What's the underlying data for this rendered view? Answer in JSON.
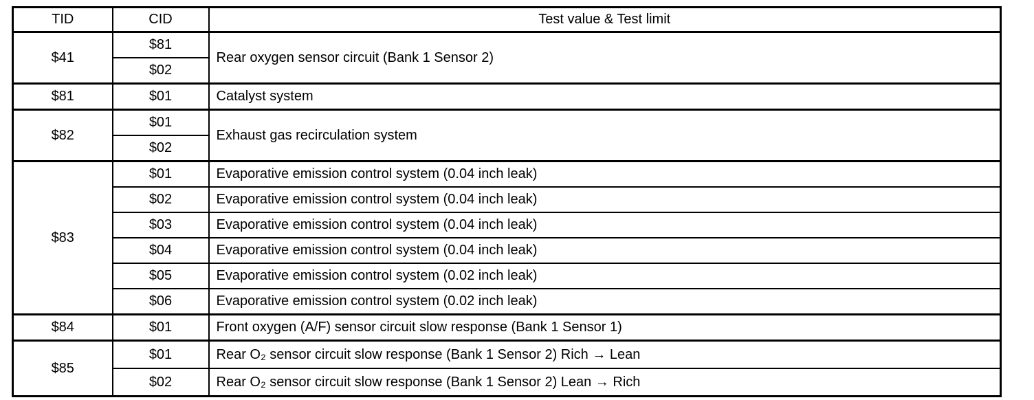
{
  "table": {
    "columns": [
      "TID",
      "CID",
      "Test value & Test limit"
    ],
    "groups": [
      {
        "tid": "$41",
        "rows": [
          {
            "cid": "$81",
            "description": "Rear oxygen sensor circuit (Bank 1 Sensor 2)"
          },
          {
            "cid": "$02"
          }
        ]
      },
      {
        "tid": "$81",
        "rows": [
          {
            "cid": "$01",
            "description": "Catalyst system"
          }
        ]
      },
      {
        "tid": "$82",
        "rows": [
          {
            "cid": "$01",
            "description": "Exhaust gas recirculation system"
          },
          {
            "cid": "$02"
          }
        ]
      },
      {
        "tid": "$83",
        "rows": [
          {
            "cid": "$01",
            "description": "Evaporative emission control system (0.04 inch leak)"
          },
          {
            "cid": "$02",
            "description": "Evaporative emission control system (0.04 inch leak)"
          },
          {
            "cid": "$03",
            "description": "Evaporative emission control system (0.04 inch leak)"
          },
          {
            "cid": "$04",
            "description": "Evaporative emission control system (0.04 inch leak)"
          },
          {
            "cid": "$05",
            "description": "Evaporative emission control system (0.02 inch leak)"
          },
          {
            "cid": "$06",
            "description": "Evaporative emission control system (0.02 inch leak)"
          }
        ]
      },
      {
        "tid": "$84",
        "rows": [
          {
            "cid": "$01",
            "description": "Front oxygen (A/F) sensor circuit slow response (Bank 1 Sensor 1)"
          }
        ]
      },
      {
        "tid": "$85",
        "rows": [
          {
            "cid": "$01",
            "description": "Rear O₂ sensor circuit slow response (Bank 1 Sensor 2) Rich → Lean"
          },
          {
            "cid": "$02",
            "description": "Rear O₂ sensor circuit slow response (Bank 1 Sensor 2) Lean → Rich"
          }
        ]
      }
    ]
  }
}
